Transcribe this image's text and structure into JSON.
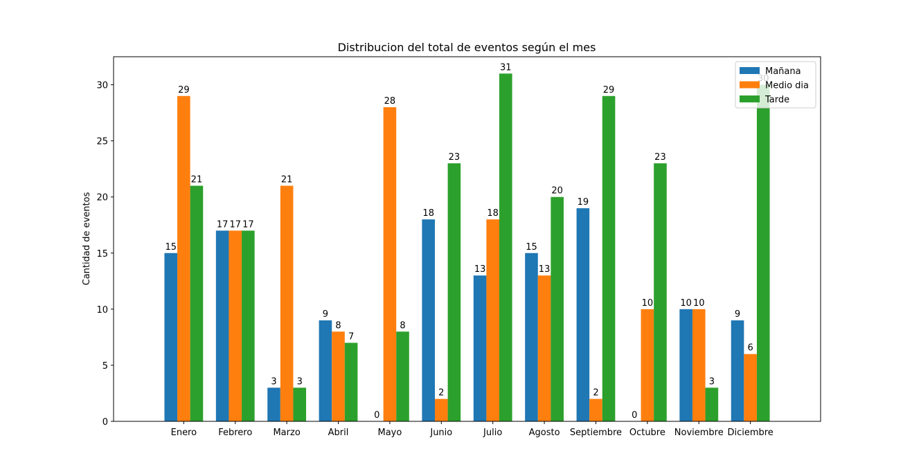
{
  "chart_data": {
    "type": "bar",
    "title": "Distribucion del total de eventos según el mes",
    "xlabel": "",
    "ylabel": "Cantidad de eventos",
    "ylim": [
      0,
      32.5
    ],
    "yticks": [
      0,
      5,
      10,
      15,
      20,
      25,
      30
    ],
    "grid": false,
    "legend_position": "top-right",
    "categories": [
      "Enero",
      "Febrero",
      "Marzo",
      "Abril",
      "Mayo",
      "Junio",
      "Julio",
      "Agosto",
      "Septiembre",
      "Octubre",
      "Noviembre",
      "Diciembre"
    ],
    "series": [
      {
        "name": "Mañana",
        "color": "#1f77b4",
        "values": [
          15,
          17,
          3,
          9,
          0,
          18,
          13,
          15,
          19,
          0,
          10,
          9
        ]
      },
      {
        "name": "Medio dia",
        "color": "#ff7f0e",
        "values": [
          29,
          17,
          21,
          8,
          28,
          2,
          18,
          13,
          2,
          10,
          10,
          6
        ]
      },
      {
        "name": "Tarde",
        "color": "#2ca02c",
        "values": [
          21,
          17,
          3,
          7,
          8,
          23,
          31,
          20,
          29,
          23,
          3,
          30
        ]
      }
    ]
  }
}
